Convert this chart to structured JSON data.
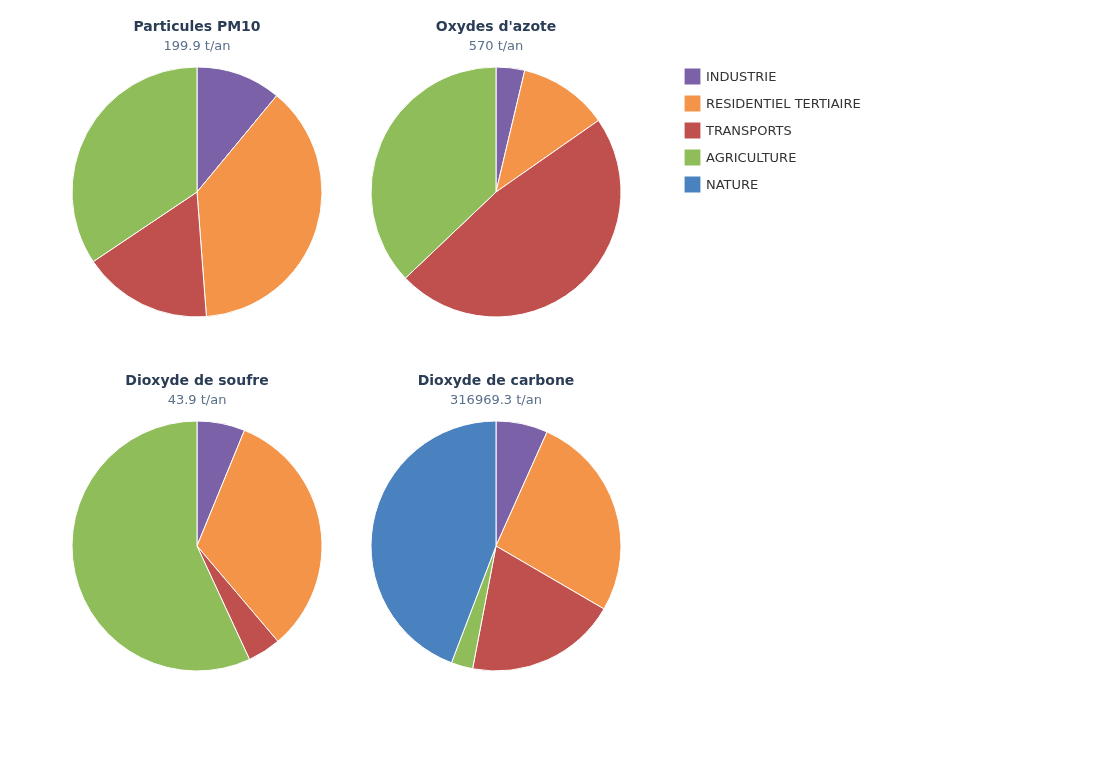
{
  "chart_data": {
    "type": "pie",
    "categories": [
      "INDUSTRIE",
      "RESIDENTIEL TERTIAIRE",
      "TRANSPORTS",
      "AGRICULTURE",
      "NATURE"
    ],
    "colors": [
      "#7b62a8",
      "#f39449",
      "#c0504d",
      "#8fbd5a",
      "#4a82c0"
    ],
    "legend": "right",
    "series": [
      {
        "name": "Particules PM10",
        "values": [
          11.0,
          37.8,
          16.8,
          34.4,
          null
        ]
      },
      {
        "name": "Oxydes d'azote",
        "values": [
          3.7,
          11.6,
          47.6,
          37.1,
          null
        ]
      },
      {
        "name": "Dioxyde de soufre",
        "values": [
          6.2,
          32.6,
          4.3,
          56.9,
          null
        ]
      },
      {
        "name": "Dioxyde de carbone",
        "values": [
          6.7,
          26.7,
          19.6,
          2.8,
          44.2
        ]
      }
    ],
    "annotations": [
      "199.9 t/an",
      "570 t/an",
      "43.9 t/an",
      "316969.3 t/an"
    ]
  }
}
